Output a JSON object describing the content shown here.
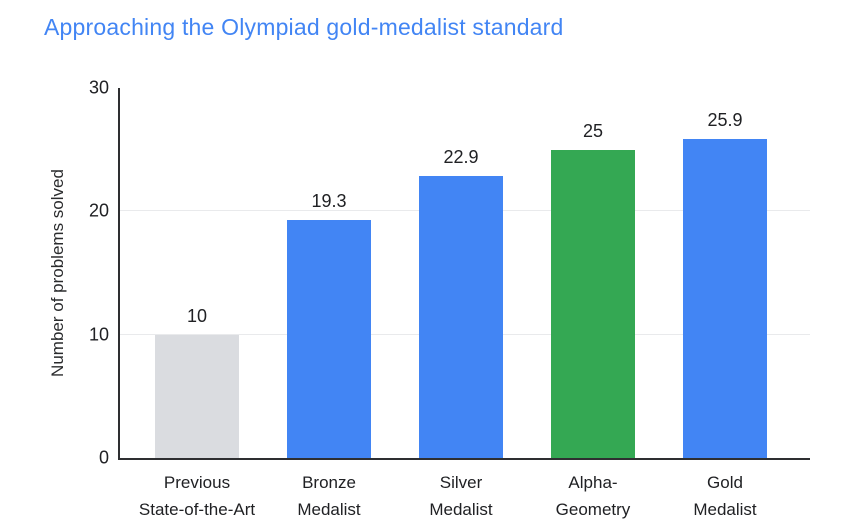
{
  "title": "Approaching the Olympiad gold-medalist standard",
  "colors": {
    "title": "#4285F4",
    "axis_line": "#2e2f31",
    "gridline": "#e9eaec",
    "label_text": "#202124",
    "bar_gray": "#DADCE0",
    "bar_blue": "#4285F4",
    "bar_green": "#34A853"
  },
  "chart_data": {
    "type": "bar",
    "title": "Approaching the Olympiad gold-medalist standard",
    "xlabel": "",
    "ylabel": "Number of problems solved",
    "ylim": [
      0,
      30
    ],
    "yticks": [
      "0",
      "10",
      "20",
      "30"
    ],
    "ytick_values": [
      0,
      10,
      20,
      30
    ],
    "gridline_values": [
      10,
      20
    ],
    "grid": "horizontal",
    "legend": "none",
    "categories": [
      "Previous\nState-of-the-Art",
      "Bronze\nMedalist",
      "Silver\nMedalist",
      "Alpha-\nGeometry",
      "Gold\nMedalist"
    ],
    "values": [
      10,
      19.3,
      22.9,
      25,
      25.9
    ],
    "value_labels": [
      "10",
      "19.3",
      "22.9",
      "25",
      "25.9"
    ],
    "bar_colors": [
      "#DADCE0",
      "#4285F4",
      "#4285F4",
      "#34A853",
      "#4285F4"
    ]
  }
}
